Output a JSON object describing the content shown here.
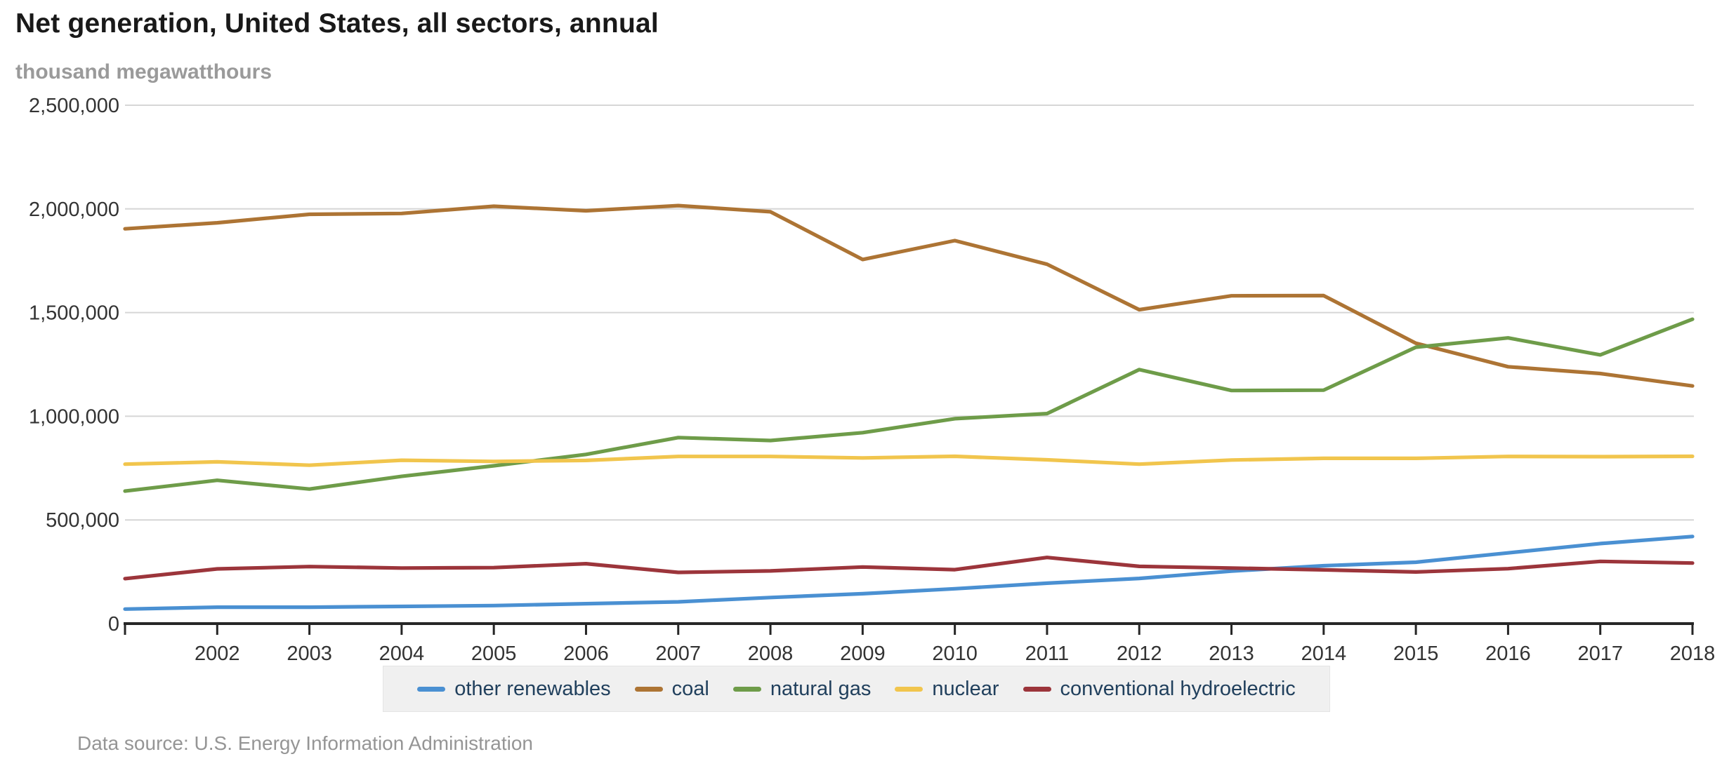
{
  "header": {
    "title": "Net generation, United States, all sectors, annual",
    "subtitle": "thousand megawatthours"
  },
  "footer": {
    "source": "Data source: U.S. Energy Information Administration"
  },
  "colors": {
    "axis_line": "#262626",
    "gridline": "#d6d6d6",
    "tick_label": "#333333",
    "legend_text": "#21405d",
    "legend_background": "#f0f0f0",
    "title_text": "#191919",
    "subtitle_text": "#9a9a9a",
    "source_text": "#959595"
  },
  "chart_data": {
    "type": "line",
    "title": "Net generation, United States, all sectors, annual",
    "ylabel": "thousand megawatthours",
    "xlabel": "",
    "grid": true,
    "legend_position": "bottom",
    "ylim": [
      0,
      2500000
    ],
    "y_tick_values": [
      0,
      500000,
      1000000,
      1500000,
      2000000,
      2500000
    ],
    "y_tick_labels": [
      "0",
      "500,000",
      "1,000,000",
      "1,500,000",
      "2,000,000",
      "2,500,000"
    ],
    "x": [
      2001,
      2002,
      2003,
      2004,
      2005,
      2006,
      2007,
      2008,
      2009,
      2010,
      2011,
      2012,
      2013,
      2014,
      2015,
      2016,
      2017,
      2018
    ],
    "x_tick_years": [
      2002,
      2003,
      2004,
      2005,
      2006,
      2007,
      2008,
      2009,
      2010,
      2011,
      2012,
      2013,
      2014,
      2015,
      2016,
      2017,
      2018
    ],
    "x_tick_labels": [
      "2002",
      "2003",
      "2004",
      "2005",
      "2006",
      "2007",
      "2008",
      "2009",
      "2010",
      "2011",
      "2012",
      "2013",
      "2014",
      "2015",
      "2016",
      "2017",
      "2018"
    ],
    "series": [
      {
        "name": "other renewables",
        "color": "#4a90d2",
        "values": [
          70000,
          79000,
          79000,
          83000,
          87000,
          96000,
          105000,
          126000,
          144000,
          168000,
          195000,
          218000,
          253000,
          279000,
          296000,
          341000,
          386000,
          420000
        ]
      },
      {
        "name": "coal",
        "color": "#ad7434",
        "values": [
          1904000,
          1933000,
          1974000,
          1978000,
          2013000,
          1991000,
          2016000,
          1986000,
          1756000,
          1847000,
          1733000,
          1514000,
          1581000,
          1582000,
          1352000,
          1239000,
          1206000,
          1146000
        ]
      },
      {
        "name": "natural gas",
        "color": "#6e9c49",
        "values": [
          639000,
          691000,
          649000,
          710000,
          761000,
          816000,
          897000,
          883000,
          921000,
          988000,
          1013000,
          1225000,
          1124000,
          1126000,
          1333000,
          1378000,
          1296000,
          1468000
        ]
      },
      {
        "name": "nuclear",
        "color": "#f1c54d",
        "values": [
          769000,
          780000,
          764000,
          788000,
          782000,
          787000,
          806000,
          806000,
          799000,
          807000,
          790000,
          769000,
          789000,
          797000,
          797000,
          806000,
          805000,
          807000
        ]
      },
      {
        "name": "conventional hydroelectric",
        "color": "#9c353b",
        "values": [
          217000,
          264000,
          275000,
          268000,
          270000,
          289000,
          247000,
          254000,
          273000,
          260000,
          319000,
          276000,
          268000,
          259000,
          249000,
          265000,
          300000,
          292000
        ]
      }
    ]
  }
}
